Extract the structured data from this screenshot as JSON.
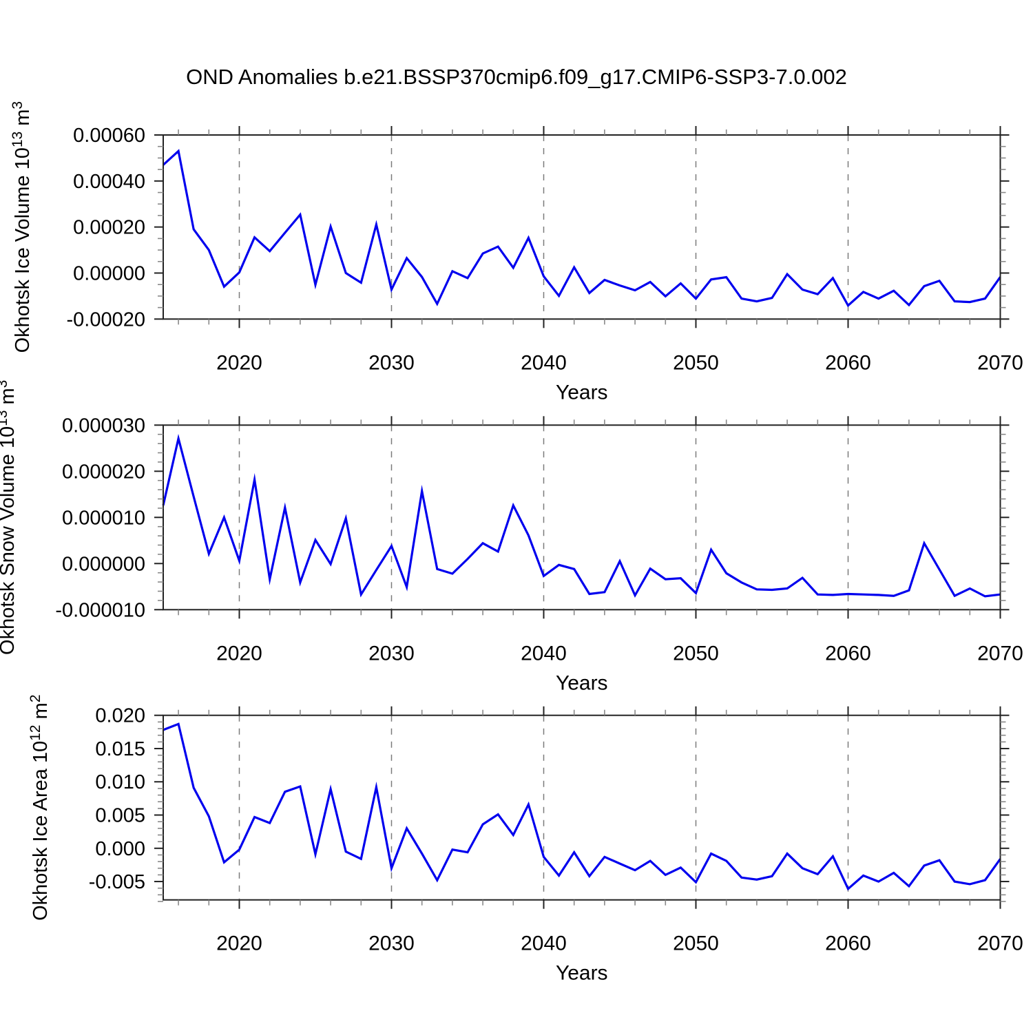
{
  "title": "OND Anomalies b.e21.BSSP370cmip6.f09_g17.CMIP6-SSP3-7.0.002",
  "colors": {
    "line": "#0000ee",
    "axis": "#222222",
    "minor_tick": "#888888",
    "grid": "#7a7a7a",
    "text": "#000000",
    "background": "#ffffff"
  },
  "xlabel": "Years",
  "chart_data": [
    {
      "type": "line",
      "name": "okhotsk-ice-volume",
      "ylabel": "Okhotsk Ice Volume 10^13 m^3",
      "xlabel": "Years",
      "x": [
        2015,
        2016,
        2017,
        2018,
        2019,
        2020,
        2021,
        2022,
        2023,
        2024,
        2025,
        2026,
        2027,
        2028,
        2029,
        2030,
        2031,
        2032,
        2033,
        2034,
        2035,
        2036,
        2037,
        2038,
        2039,
        2040,
        2041,
        2042,
        2043,
        2044,
        2045,
        2046,
        2047,
        2048,
        2049,
        2050,
        2051,
        2052,
        2053,
        2054,
        2055,
        2056,
        2057,
        2058,
        2059,
        2060,
        2061,
        2062,
        2063,
        2064,
        2065,
        2066,
        2067,
        2068,
        2069,
        2070
      ],
      "values": [
        0.00047,
        0.00053,
        0.00019,
        0.0001,
        -5.9e-05,
        3e-06,
        0.000155,
        9.5e-05,
        0.000175,
        0.000254,
        -5.1e-05,
        0.000202,
        0.0,
        -4.2e-05,
        0.000211,
        -7.2e-05,
        6.5e-05,
        -1.7e-05,
        -0.000134,
        8e-06,
        -2.2e-05,
        8.5e-05,
        0.000115,
        2.3e-05,
        0.000153,
        -1.4e-05,
        -9.9e-05,
        2.5e-05,
        -8.7e-05,
        -3e-05,
        -5.4e-05,
        -7.5e-05,
        -3.9e-05,
        -0.000101,
        -4.5e-05,
        -0.000111,
        -2.8e-05,
        -1.8e-05,
        -0.000111,
        -0.000123,
        -0.000108,
        -5e-06,
        -7.2e-05,
        -9.2e-05,
        -2.2e-05,
        -0.000141,
        -8.2e-05,
        -0.000111,
        -7.7e-05,
        -0.000139,
        -5.7e-05,
        -3.4e-05,
        -0.000123,
        -0.000126,
        -0.000111,
        -1.7e-05
      ],
      "xlim": [
        2015,
        2070
      ],
      "ylim": [
        -0.0002,
        0.0006
      ],
      "xticks": [
        2020,
        2030,
        2040,
        2050,
        2060,
        2070
      ],
      "xtick_labels": [
        "2020",
        "2030",
        "2040",
        "2050",
        "2060",
        "2070"
      ],
      "xminor_step": 2,
      "ytick_values": [
        0.0006,
        0.0004,
        0.0002,
        0.0,
        -0.0002
      ],
      "ytick_labels": [
        "0.00060",
        "0.00040",
        "0.00020",
        "0.00000",
        "-0.00020"
      ],
      "yminor_step": 5e-05,
      "grid_x": [
        2020,
        2030,
        2040,
        2050,
        2060
      ],
      "grid_on": "x-dashed",
      "legend": "none"
    },
    {
      "type": "line",
      "name": "okhotsk-snow-volume",
      "ylabel": "Okhotsk Snow Volume 10^13 m^3",
      "xlabel": "Years",
      "x": [
        2015,
        2016,
        2017,
        2018,
        2019,
        2020,
        2021,
        2022,
        2023,
        2024,
        2025,
        2026,
        2027,
        2028,
        2029,
        2030,
        2031,
        2032,
        2033,
        2034,
        2035,
        2036,
        2037,
        2038,
        2039,
        2040,
        2041,
        2042,
        2043,
        2044,
        2045,
        2046,
        2047,
        2048,
        2049,
        2050,
        2051,
        2052,
        2053,
        2054,
        2055,
        2056,
        2057,
        2058,
        2059,
        2060,
        2061,
        2062,
        2063,
        2064,
        2065,
        2066,
        2067,
        2068,
        2069,
        2070
      ],
      "values": [
        1.26e-05,
        2.71e-05,
        1.45e-05,
        2.1e-06,
        1e-05,
        6e-07,
        1.82e-05,
        -3.4e-06,
        1.21e-05,
        -4.1e-06,
        5.1e-06,
        -1e-07,
        9.8e-06,
        -6.7e-06,
        -1.4e-06,
        3.8e-06,
        -5.1e-06,
        1.57e-05,
        -1.2e-06,
        -2.2e-06,
        1e-06,
        4.4e-06,
        2.6e-06,
        1.26e-05,
        6.1e-06,
        -2.7e-06,
        -3e-07,
        -1.2e-06,
        -6.6e-06,
        -6.2e-06,
        5e-07,
        -6.9e-06,
        -1.1e-06,
        -3.4e-06,
        -3.2e-06,
        -6.4e-06,
        3e-06,
        -2.1e-06,
        -4.1e-06,
        -5.6e-06,
        -5.7e-06,
        -5.4e-06,
        -3.1e-06,
        -6.7e-06,
        -6.8e-06,
        -6.6e-06,
        -6.7e-06,
        -6.8e-06,
        -7e-06,
        -5.8e-06,
        4.4e-06,
        -1.3e-06,
        -7e-06,
        -5.4e-06,
        -7.1e-06,
        -6.7e-06
      ],
      "xlim": [
        2015,
        2070
      ],
      "ylim": [
        -1e-05,
        3e-05
      ],
      "xticks": [
        2020,
        2030,
        2040,
        2050,
        2060,
        2070
      ],
      "xtick_labels": [
        "2020",
        "2030",
        "2040",
        "2050",
        "2060",
        "2070"
      ],
      "xminor_step": 2,
      "ytick_values": [
        3e-05,
        2e-05,
        1e-05,
        0.0,
        -1e-05
      ],
      "ytick_labels": [
        "0.000030",
        "0.000020",
        "0.000010",
        "0.000000",
        "-0.000010"
      ],
      "yminor_step": 2e-06,
      "grid_x": [
        2020,
        2030,
        2040,
        2050,
        2060
      ],
      "grid_on": "x-dashed",
      "legend": "none"
    },
    {
      "type": "line",
      "name": "okhotsk-ice-area",
      "ylabel": "Okhotsk Ice Area 10^12 m^2",
      "xlabel": "Years",
      "x": [
        2015,
        2016,
        2017,
        2018,
        2019,
        2020,
        2021,
        2022,
        2023,
        2024,
        2025,
        2026,
        2027,
        2028,
        2029,
        2030,
        2031,
        2032,
        2033,
        2034,
        2035,
        2036,
        2037,
        2038,
        2039,
        2040,
        2041,
        2042,
        2043,
        2044,
        2045,
        2046,
        2047,
        2048,
        2049,
        2050,
        2051,
        2052,
        2053,
        2054,
        2055,
        2056,
        2057,
        2058,
        2059,
        2060,
        2061,
        2062,
        2063,
        2064,
        2065,
        2066,
        2067,
        2068,
        2069,
        2070
      ],
      "values": [
        0.0178,
        0.0187,
        0.0091,
        0.0048,
        -0.0021,
        -0.0002,
        0.0047,
        0.0038,
        0.0085,
        0.0093,
        -0.0009,
        0.0089,
        -0.0005,
        -0.0016,
        0.0092,
        -0.003,
        0.003,
        -0.0008,
        -0.0048,
        -0.0002,
        -0.0006,
        0.0036,
        0.0051,
        0.002,
        0.0066,
        -0.0013,
        -0.0041,
        -0.0006,
        -0.0042,
        -0.0013,
        -0.0023,
        -0.0033,
        -0.0019,
        -0.004,
        -0.0029,
        -0.0051,
        -0.0008,
        -0.0019,
        -0.0044,
        -0.0047,
        -0.0042,
        -0.0008,
        -0.003,
        -0.0039,
        -0.0012,
        -0.0061,
        -0.0041,
        -0.005,
        -0.0037,
        -0.0057,
        -0.0026,
        -0.0018,
        -0.005,
        -0.0054,
        -0.0048,
        -0.0016
      ],
      "xlim": [
        2015,
        2070
      ],
      "ylim": [
        -0.00776,
        0.02
      ],
      "xticks": [
        2020,
        2030,
        2040,
        2050,
        2060,
        2070
      ],
      "xtick_labels": [
        "2020",
        "2030",
        "2040",
        "2050",
        "2060",
        "2070"
      ],
      "xminor_step": 2,
      "ytick_values": [
        0.02,
        0.015,
        0.01,
        0.005,
        0.0,
        -0.005
      ],
      "ytick_labels": [
        "0.020",
        "0.015",
        "0.010",
        "0.005",
        "0.000",
        "-0.005"
      ],
      "yminor_step": 0.001,
      "grid_x": [
        2020,
        2030,
        2040,
        2050,
        2060
      ],
      "grid_on": "x-dashed",
      "legend": "none"
    }
  ]
}
